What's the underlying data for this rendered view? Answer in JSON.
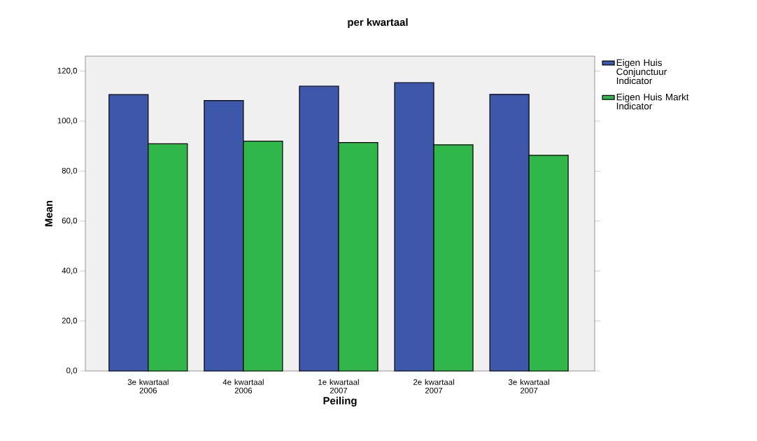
{
  "chart_data": {
    "type": "bar",
    "title": "per kwartaal",
    "xlabel": "Peiling",
    "ylabel": "Mean",
    "categories": [
      "3e kwartaal 2006",
      "4e kwartaal 2006",
      "1e kwartaal 2007",
      "2e kwartaal 2007",
      "3e kwartaal 2007"
    ],
    "series": [
      {
        "name": "Eigen Huis Conjunctuur Indicator",
        "color": "#3d58ab",
        "values": [
          110.6,
          108.2,
          114.0,
          115.4,
          110.7
        ]
      },
      {
        "name": "Eigen Huis Markt Indicator",
        "color": "#30b74a",
        "values": [
          90.9,
          92.0,
          91.4,
          90.5,
          86.3
        ]
      }
    ],
    "ylim": [
      0,
      126
    ],
    "yticks": [
      {
        "value": 0,
        "label": "0,0"
      },
      {
        "value": 20,
        "label": "20,0"
      },
      {
        "value": 40,
        "label": "40,0"
      },
      {
        "value": 60,
        "label": "60,0"
      },
      {
        "value": 80,
        "label": "80,0"
      },
      {
        "value": 100,
        "label": "100,0"
      },
      {
        "value": 120,
        "label": "120,0"
      }
    ],
    "legend": "top right"
  }
}
